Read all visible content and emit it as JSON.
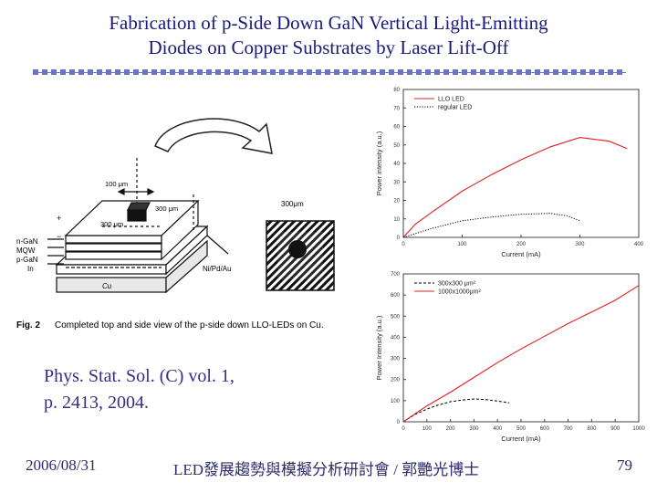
{
  "slide": {
    "title_line1": "Fabrication of p-Side Down GaN Vertical Light-Emitting",
    "title_line2": "Diodes on Copper Substrates by Laser Lift-Off",
    "citation_line1": "Phys. Stat. Sol. (C) vol. 1,",
    "citation_line2": "p. 2413, 2004.",
    "footer_date": "2006/08/31",
    "footer_center": "LED發展趨勢與模擬分析研討會 / 郭艷光博士",
    "footer_page": "79"
  },
  "figure": {
    "caption_label": "Fig. 2",
    "caption_text": "Completed top and side view of the p-side down LLO-LEDs on Cu.",
    "labels": {
      "dim100": "100 μm",
      "dim300a": "300 μm",
      "dim300b": "300 μm",
      "dim300top": "300μm",
      "layer1": "n-GaN",
      "layer2": "MQW",
      "layer3": "p-GaN",
      "layer4": "In",
      "metal": "Ni/Pd/Au",
      "substrate": "Cu",
      "plus": "+",
      "minus": "−"
    }
  },
  "chart_data": [
    {
      "type": "line",
      "xlabel": "Current (mA)",
      "ylabel": "Power intensity (a.u.)",
      "xlim": [
        0,
        400
      ],
      "ylim": [
        0,
        80
      ],
      "xticks": [
        0,
        100,
        200,
        300,
        400
      ],
      "yticks": [
        0,
        10,
        20,
        30,
        40,
        50,
        60,
        70,
        80
      ],
      "series": [
        {
          "name": "LLO LED",
          "color": "#e02020",
          "style": "solid",
          "x": [
            0,
            20,
            50,
            100,
            150,
            200,
            250,
            300,
            350,
            380
          ],
          "y": [
            0,
            7,
            14,
            25,
            34,
            42,
            49,
            54,
            52,
            48
          ]
        },
        {
          "name": "regular LED",
          "color": "#000000",
          "style": "dotted",
          "x": [
            0,
            50,
            100,
            150,
            200,
            250,
            280,
            300
          ],
          "y": [
            0,
            5,
            9,
            11,
            12.5,
            13,
            11.5,
            9
          ]
        }
      ]
    },
    {
      "type": "line",
      "xlabel": "Current (mA)",
      "ylabel": "Power Intensity (a.u.)",
      "xlim": [
        0,
        1000
      ],
      "ylim": [
        0,
        700
      ],
      "xticks": [
        0,
        100,
        200,
        300,
        400,
        500,
        600,
        700,
        800,
        900,
        1000
      ],
      "yticks": [
        0,
        100,
        200,
        300,
        400,
        500,
        600,
        700
      ],
      "series": [
        {
          "name": "300x300 μm²",
          "color": "#000000",
          "style": "dashed",
          "x": [
            0,
            50,
            100,
            150,
            200,
            250,
            300,
            350,
            400,
            450
          ],
          "y": [
            0,
            35,
            60,
            80,
            95,
            103,
            108,
            105,
            98,
            90
          ]
        },
        {
          "name": "1000x1000μm²",
          "color": "#e02020",
          "style": "solid",
          "x": [
            0,
            100,
            200,
            300,
            400,
            500,
            600,
            700,
            800,
            900,
            1000
          ],
          "y": [
            0,
            75,
            140,
            210,
            280,
            345,
            405,
            465,
            520,
            575,
            645
          ]
        }
      ]
    }
  ]
}
